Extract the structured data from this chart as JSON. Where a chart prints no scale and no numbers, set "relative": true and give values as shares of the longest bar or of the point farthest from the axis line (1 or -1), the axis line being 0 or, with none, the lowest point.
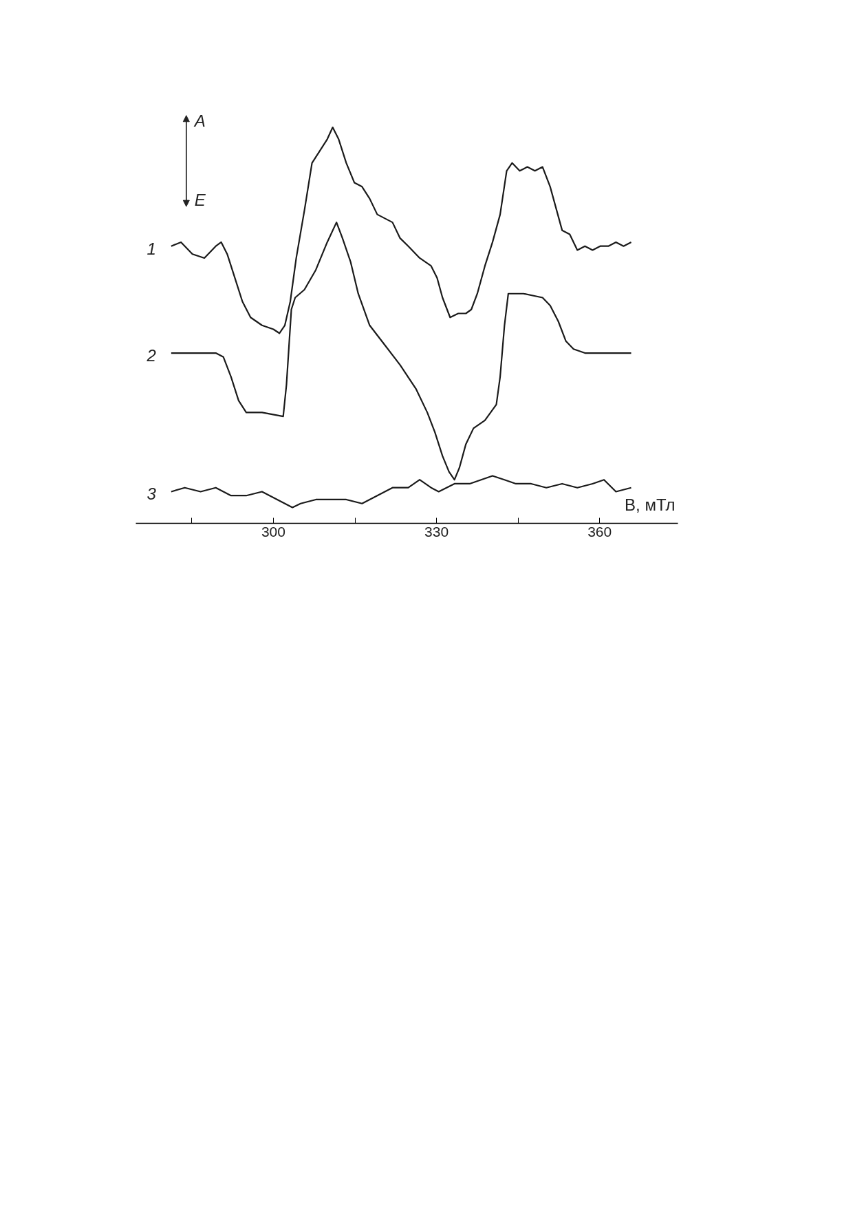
{
  "chart_data": {
    "type": "line",
    "relative": true,
    "xlabel": "B, мТл",
    "annotations": [
      "A",
      "E"
    ],
    "xlim": [
      274.7,
      374.4
    ],
    "xticks": [
      {
        "value": 285,
        "label": null
      },
      300,
      {
        "value": 315,
        "label": null
      },
      330,
      {
        "value": 345,
        "label": null
      },
      360
    ],
    "grid": false,
    "marker": "none",
    "line_style": "solid",
    "series": [
      {
        "name": "1",
        "color": "#1a1a1a",
        "x": [
          281.2,
          283.0,
          285.1,
          287.3,
          289.4,
          290.4,
          291.5,
          292.9,
          294.3,
          295.8,
          297.9,
          300.0,
          301.1,
          302.1,
          303.1,
          304.2,
          305.7,
          307.1,
          308.5,
          309.9,
          310.9,
          312.0,
          313.4,
          314.9,
          316.3,
          317.7,
          319.1,
          320.5,
          321.9,
          323.3,
          324.8,
          326.9,
          329.0,
          330.1,
          331.1,
          332.5,
          334.0,
          335.4,
          336.4,
          337.5,
          338.9,
          340.3,
          341.7,
          342.9,
          343.9,
          345.3,
          346.7,
          348.1,
          349.5,
          350.9,
          351.9,
          353.1,
          354.5,
          355.9,
          357.3,
          358.7,
          360.1,
          361.6,
          363.0,
          364.4,
          365.8
        ],
        "values": [
          0.7,
          0.71,
          0.68,
          0.67,
          0.7,
          0.71,
          0.68,
          0.62,
          0.56,
          0.52,
          0.5,
          0.49,
          0.48,
          0.5,
          0.56,
          0.67,
          0.79,
          0.91,
          0.94,
          0.97,
          1.0,
          0.97,
          0.91,
          0.86,
          0.85,
          0.82,
          0.78,
          0.77,
          0.76,
          0.72,
          0.7,
          0.67,
          0.65,
          0.62,
          0.57,
          0.52,
          0.53,
          0.53,
          0.54,
          0.58,
          0.65,
          0.71,
          0.78,
          0.89,
          0.91,
          0.89,
          0.9,
          0.89,
          0.9,
          0.85,
          0.8,
          0.74,
          0.73,
          0.69,
          0.7,
          0.69,
          0.7,
          0.7,
          0.71,
          0.7,
          0.71
        ]
      },
      {
        "name": "2",
        "color": "#1a1a1a",
        "x": [
          281.2,
          289.4,
          290.8,
          292.2,
          293.6,
          295.0,
          297.9,
          301.8,
          302.4,
          303.3,
          304.0,
          305.7,
          307.8,
          309.9,
          311.6,
          312.7,
          314.2,
          315.6,
          317.7,
          320.5,
          323.3,
          326.2,
          328.3,
          329.7,
          331.1,
          332.3,
          333.3,
          334.2,
          335.4,
          336.8,
          338.9,
          341.0,
          341.7,
          342.5,
          343.2,
          346.0,
          349.5,
          350.9,
          352.4,
          353.8,
          355.2,
          357.3,
          365.8
        ],
        "values": [
          0.43,
          0.43,
          0.42,
          0.37,
          0.31,
          0.28,
          0.28,
          0.27,
          0.35,
          0.54,
          0.57,
          0.59,
          0.64,
          0.71,
          0.76,
          0.72,
          0.66,
          0.58,
          0.5,
          0.45,
          0.4,
          0.34,
          0.28,
          0.23,
          0.17,
          0.13,
          0.11,
          0.14,
          0.2,
          0.24,
          0.26,
          0.3,
          0.37,
          0.5,
          0.58,
          0.58,
          0.57,
          0.55,
          0.51,
          0.46,
          0.44,
          0.43,
          0.43
        ]
      },
      {
        "name": "3",
        "color": "#1a1a1a",
        "x": [
          281.2,
          283.7,
          286.6,
          289.4,
          292.2,
          295.0,
          297.9,
          300.7,
          303.5,
          305.0,
          307.8,
          310.6,
          313.4,
          316.3,
          319.1,
          321.9,
          324.8,
          326.9,
          329.0,
          330.4,
          333.3,
          336.1,
          338.2,
          340.3,
          342.5,
          344.6,
          347.4,
          350.2,
          353.1,
          355.9,
          358.7,
          360.8,
          363.0,
          365.8
        ],
        "values": [
          0.08,
          0.09,
          0.08,
          0.09,
          0.07,
          0.07,
          0.08,
          0.06,
          0.04,
          0.05,
          0.06,
          0.06,
          0.06,
          0.05,
          0.07,
          0.09,
          0.09,
          0.11,
          0.09,
          0.08,
          0.1,
          0.1,
          0.11,
          0.12,
          0.11,
          0.1,
          0.1,
          0.09,
          0.1,
          0.09,
          0.1,
          0.11,
          0.08,
          0.09
        ]
      }
    ]
  }
}
